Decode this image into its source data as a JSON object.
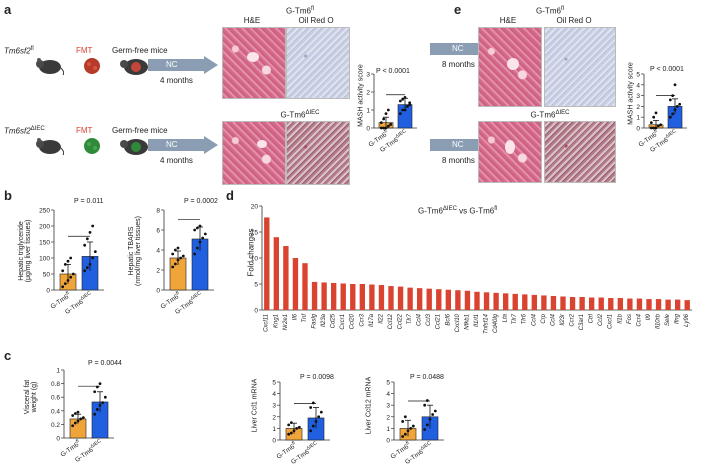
{
  "panels": {
    "a": "a",
    "b": "b",
    "c": "c",
    "d": "d",
    "e": "e"
  },
  "colors": {
    "orange": "#f0a53a",
    "blue": "#1f5fe0",
    "red": "#d9432f",
    "arrow": "#8a9db3"
  },
  "panel_a": {
    "row1_genotype": "Tm6sf2",
    "row1_sup": "fl",
    "row2_genotype": "Tm6sf2",
    "row2_sup": "ΔIEC",
    "fmt": "FMT",
    "germ_free": "Germ-free mice",
    "nc": "NC",
    "duration": "4 months",
    "img_title_top": "G-Tm6",
    "img_title_top_sup": "fl",
    "img_title_bottom": "G-Tm6",
    "img_title_bottom_sup": "ΔIEC",
    "he": "H&E",
    "oil_red": "Oil Red O",
    "chart_ylabel": "MASH activity score",
    "pval": "P < 0.0001"
  },
  "panel_e": {
    "nc": "NC",
    "duration": "8 months",
    "img_title_top": "G-Tm6",
    "img_title_top_sup": "fl",
    "img_title_bottom": "G-Tm6",
    "img_title_bottom_sup": "ΔIEC",
    "he": "H&E",
    "oil_red": "Oil Red O",
    "chart_ylabel": "MASH activity score",
    "pval": "P < 0.0001"
  },
  "group_labels": {
    "fl": "G-Tm6",
    "fl_sup": "fl",
    "iec": "G-Tm6",
    "iec_sup": "ΔIEC"
  },
  "panel_b": {
    "tg_ylabel1": "Hepatic triglyceride",
    "tg_ylabel2": "(μg/mg liver tissues)",
    "tg_pval": "P = 0.011",
    "tbars_ylabel1": "Hepatic TBARS",
    "tbars_ylabel2": "(nmol/mg liver tissues)",
    "tbars_pval": "P = 0.0002"
  },
  "panel_c": {
    "ylabel1": "Visceral fat",
    "ylabel2": "weight (g)",
    "pval": "P = 0.0044"
  },
  "panel_d": {
    "title": "G-Tm6",
    "title_sup": "ΔIEC",
    "title_rest": " vs G-Tm6",
    "title_sup2": "fl",
    "ylabel": "Fold changes",
    "ccl1_ylabel": "Liver Ccl1 mRNA",
    "ccl1_pval": "P = 0.0098",
    "ccl12_ylabel": "Liver Ccl12 mRNA",
    "ccl12_pval": "P = 0.0488"
  },
  "chart_data": [
    {
      "id": "a_mash",
      "type": "bar",
      "title": "",
      "categories": [
        "G-Tm6fl",
        "G-Tm6ΔIEC"
      ],
      "values": [
        0.3,
        1.3
      ],
      "errors": [
        0.3,
        0.35
      ],
      "ylim": [
        0,
        3
      ],
      "yticks": [
        0,
        1,
        2,
        3
      ],
      "ylabel": "MASH activity score",
      "points": [
        [
          0,
          0,
          0,
          0.1,
          0.2,
          0.3,
          0.5,
          0.8,
          1,
          0.2
        ],
        [
          0.8,
          1,
          1,
          1.2,
          1.3,
          1.5,
          1.6,
          1.7,
          1.2,
          1.4
        ]
      ]
    },
    {
      "id": "e_mash",
      "type": "bar",
      "title": "",
      "categories": [
        "G-Tm6fl",
        "G-Tm6ΔIEC"
      ],
      "values": [
        0.3,
        2.0
      ],
      "errors": [
        0.4,
        0.7
      ],
      "ylim": [
        0,
        5
      ],
      "yticks": [
        0,
        1,
        2,
        3,
        4,
        5
      ],
      "ylabel": "MASH activity score",
      "points": [
        [
          0,
          0,
          0,
          0.2,
          0.3,
          0.5,
          1,
          1.4
        ],
        [
          1,
          1.3,
          1.7,
          2,
          2.2,
          2.6,
          3,
          4
        ]
      ]
    },
    {
      "id": "b_tg",
      "type": "bar",
      "title": "",
      "categories": [
        "G-Tm6fl",
        "G-Tm6ΔIEC"
      ],
      "values": [
        50,
        105
      ],
      "errors": [
        30,
        45
      ],
      "ylim": [
        0,
        250
      ],
      "yticks": [
        0,
        50,
        100,
        150,
        200,
        250
      ],
      "ylabel": "Hepatic triglyceride (μg/mg liver tissues)",
      "points": [
        [
          10,
          20,
          30,
          40,
          50,
          60,
          80,
          90,
          100
        ],
        [
          60,
          70,
          80,
          100,
          120,
          140,
          160,
          180,
          200
        ]
      ]
    },
    {
      "id": "b_tbars",
      "type": "bar",
      "title": "",
      "categories": [
        "G-Tm6fl",
        "G-Tm6ΔIEC"
      ],
      "values": [
        3.2,
        5.1
      ],
      "errors": [
        0.7,
        1.2
      ],
      "ylim": [
        0,
        8
      ],
      "yticks": [
        0,
        2,
        4,
        6,
        8
      ],
      "ylabel": "Hepatic TBARS (nmol/mg liver tissues)",
      "points": [
        [
          2.3,
          2.6,
          3,
          3.2,
          3.4,
          3.6,
          4,
          4.2
        ],
        [
          3.6,
          4.2,
          4.8,
          5.2,
          5.6,
          6,
          6.2,
          6.4
        ]
      ]
    },
    {
      "id": "c_fat",
      "type": "bar",
      "title": "",
      "categories": [
        "G-Tm6fl",
        "G-Tm6ΔIEC"
      ],
      "values": [
        0.28,
        0.53
      ],
      "errors": [
        0.07,
        0.15
      ],
      "ylim": [
        0,
        1.0
      ],
      "yticks": [
        0,
        0.2,
        0.4,
        0.6,
        0.8,
        1.0
      ],
      "ylabel": "Visceral fat weight (g)",
      "points": [
        [
          0.18,
          0.22,
          0.25,
          0.28,
          0.3,
          0.33,
          0.36,
          0.38
        ],
        [
          0.35,
          0.42,
          0.48,
          0.52,
          0.6,
          0.68,
          0.75,
          0.8
        ]
      ]
    },
    {
      "id": "d_ccl1",
      "type": "bar",
      "title": "",
      "categories": [
        "G-Tm6fl",
        "G-Tm6ΔIEC"
      ],
      "values": [
        1.0,
        1.9
      ],
      "errors": [
        0.45,
        0.9
      ],
      "ylim": [
        0,
        5
      ],
      "yticks": [
        0,
        1,
        2,
        3,
        4,
        5
      ],
      "ylabel": "Liver Ccl1 mRNA",
      "points": [
        [
          0.5,
          0.6,
          0.8,
          1,
          1.1,
          1.3,
          1.5
        ],
        [
          0.8,
          1.2,
          1.6,
          2,
          2.4,
          2.8,
          3.2
        ]
      ]
    },
    {
      "id": "d_ccl12",
      "type": "bar",
      "title": "",
      "categories": [
        "G-Tm6fl",
        "G-Tm6ΔIEC"
      ],
      "values": [
        1.0,
        2.0
      ],
      "errors": [
        0.7,
        1.0
      ],
      "ylim": [
        0,
        5
      ],
      "yticks": [
        0,
        1,
        2,
        3,
        4,
        5
      ],
      "ylabel": "Liver Ccl12 mRNA",
      "points": [
        [
          0.3,
          0.5,
          0.8,
          1,
          1.2,
          1.6,
          2
        ],
        [
          0.9,
          1.3,
          1.8,
          2.2,
          2.5,
          3,
          3.4
        ]
      ]
    },
    {
      "id": "d_fold",
      "type": "bar",
      "title": "G-Tm6ΔIEC vs G-Tm6fl",
      "ylabel": "Fold changes",
      "ylim": [
        0,
        20
      ],
      "yticks": [
        0,
        5,
        10,
        15,
        20
      ],
      "categories": [
        "Cxcl11",
        "Kng1",
        "Nr2e1",
        "Il6",
        "Tnf",
        "Faslg",
        "Il23a",
        "Cd25",
        "Cxcr1",
        "Ccl20",
        "Ccr3",
        "Il17a",
        "Il22",
        "Ccl12",
        "Ccl22",
        "Tlr7",
        "Ccl4",
        "Ccl3",
        "Ccl21",
        "Bcl6",
        "Cxcl10",
        "Nfkb1",
        "Il1rl1",
        "Tnfsf14",
        "Cd40lg",
        "Lta",
        "Tlr7",
        "Tlr6",
        "Ccl4",
        "Crp",
        "Ccl4",
        "Il23r",
        "Ccr2",
        "C3ar1",
        "Ctrl",
        "Ccl2",
        "Cxcl1",
        "Il1b",
        "Fos",
        "Ccr4",
        "Il9",
        "Il10rb",
        "Sele",
        "Ifng",
        "Ly96"
      ],
      "values": [
        17.8,
        14,
        12.3,
        10,
        9,
        5.4,
        5.3,
        5.2,
        5.1,
        5.0,
        5.0,
        4.9,
        4.8,
        4.6,
        4.5,
        4.3,
        4.2,
        4.1,
        4.0,
        3.9,
        3.8,
        3.7,
        3.5,
        3.4,
        3.3,
        3.2,
        3.1,
        3.0,
        2.9,
        2.8,
        2.7,
        2.6,
        2.5,
        2.5,
        2.4,
        2.4,
        2.3,
        2.3,
        2.2,
        2.2,
        2.1,
        2.1,
        2.0,
        2.0,
        1.9
      ]
    }
  ]
}
